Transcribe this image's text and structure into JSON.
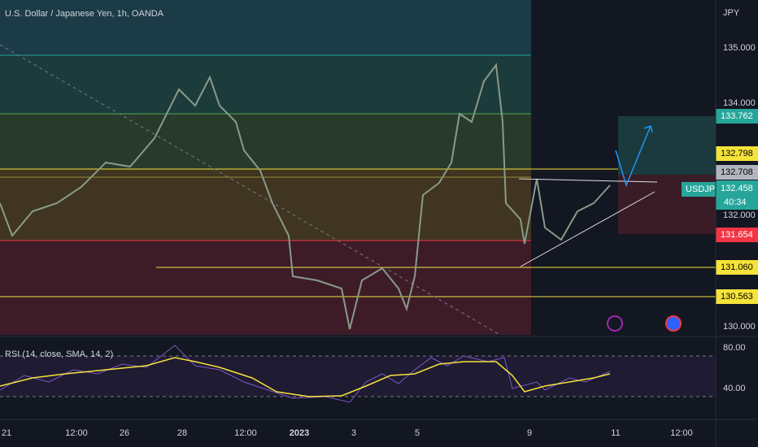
{
  "header": {
    "title": "U.S. Dollar / Japanese Yen, 1h, OANDA",
    "currency": "JPY",
    "symbol": "USDJPY"
  },
  "price_axis": [
    "135.000",
    "134.000",
    "132.000",
    "130.000"
  ],
  "price_tags": {
    "target": "133.762",
    "upper": "132.798",
    "mid": "132.708",
    "last": "132.458",
    "countdown": "40:34",
    "stop": "131.654",
    "support1": "131.060",
    "support2": "130.563"
  },
  "rsi": {
    "label": "RSI (14, close, SMA, 14, 2)",
    "axis": [
      "80.00",
      "40.00"
    ]
  },
  "time_axis": [
    "21",
    "12:00",
    "26",
    "28",
    "12:00",
    "2023",
    "3",
    "5",
    "9",
    "11",
    "12:00"
  ]
}
